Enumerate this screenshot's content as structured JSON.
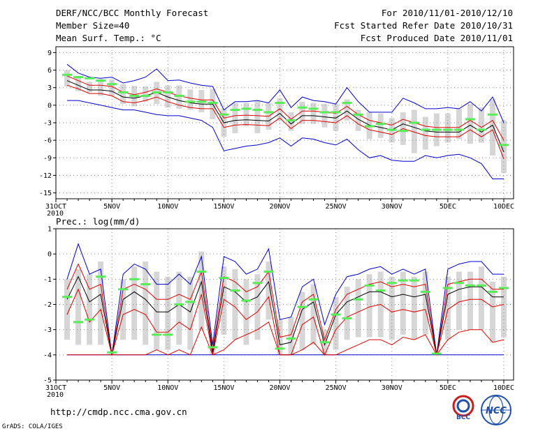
{
  "header": {
    "line1_left": "DERF/NCC/BCC Monthly Forecast",
    "line2_left": "Member Size=40",
    "line3_left": "Mean Surf. Temp.: °C",
    "line1_right": "For 2010/11/01-2010/12/10",
    "line2_right": "Fcst Started Refer Date 2010/10/31",
    "line3_right": "Fcst Produced Date 2010/11/01"
  },
  "footer": {
    "url": "http://cmdp.ncc.cma.gov.cn",
    "credit": "GrADS: COLA/IGES",
    "bcc_logo": "BCC",
    "ncc_logo": "NCC"
  },
  "colors": {
    "max_min": "#0000cc",
    "spread": "#dd0000",
    "mean": "#000000",
    "box": "#d6d6d6",
    "median": "#55ee55",
    "grid": "#888888"
  },
  "x_tick_labels": [
    "31OCT",
    "5NOV",
    "10NOV",
    "15NOV",
    "20NOV",
    "25NOV",
    "30NOV",
    "5DEC",
    "10DEC"
  ],
  "x_tick_days": [
    0,
    5,
    10,
    15,
    20,
    25,
    30,
    35,
    40
  ],
  "x_year_label": "2010",
  "chart_data": [
    {
      "type": "line",
      "title": "Mean Surf. Temp.: °C",
      "ylabel": "",
      "ylim": [
        -16,
        10
      ],
      "y_ticks": [
        -15,
        -12,
        -9,
        -6,
        -3,
        0,
        3,
        6,
        9
      ],
      "x": [
        1,
        2,
        3,
        4,
        5,
        6,
        7,
        8,
        9,
        10,
        11,
        12,
        13,
        14,
        15,
        16,
        17,
        18,
        19,
        20,
        21,
        22,
        23,
        24,
        25,
        26,
        27,
        28,
        29,
        30,
        31,
        32,
        33,
        34,
        35,
        36,
        37,
        38,
        39,
        40
      ],
      "series": [
        {
          "name": "max",
          "values": [
            7,
            5.5,
            4.8,
            4.6,
            4.8,
            3.8,
            4.2,
            4.8,
            6.2,
            4.2,
            4.3,
            3.8,
            3.4,
            3.2,
            -0.8,
            0.6,
            0.6,
            0.8,
            0.4,
            2.6,
            -0.4,
            1.4,
            0.8,
            0.6,
            0.2,
            3,
            0.6,
            -1.2,
            -1.2,
            -1.2,
            1.2,
            0.4,
            -0.6,
            -0.6,
            -0.4,
            -0.6,
            0.6,
            -1,
            1.4,
            -3
          ]
        },
        {
          "name": "upper",
          "values": [
            5,
            4.2,
            3.4,
            3.4,
            3.2,
            2.2,
            1.8,
            2.2,
            2.8,
            2.2,
            1.6,
            1.2,
            0.9,
            0.9,
            -2.2,
            -1.8,
            -1.7,
            -1.8,
            -1.9,
            -0.6,
            -2.4,
            -1,
            -1,
            -1.2,
            -1.4,
            -0.2,
            -1.6,
            -2.6,
            -3,
            -3.4,
            -2.4,
            -3,
            -3.6,
            -3.8,
            -3.8,
            -3.8,
            -2.6,
            -3.8,
            -2.6,
            -6
          ]
        },
        {
          "name": "mean",
          "values": [
            4.2,
            3.4,
            2.6,
            2.6,
            2.4,
            1.4,
            1.2,
            1.6,
            2.2,
            1.4,
            0.8,
            0.4,
            0.2,
            0.2,
            -3,
            -2.6,
            -2.5,
            -2.6,
            -2.7,
            -1.4,
            -3.2,
            -1.8,
            -1.8,
            -2,
            -2.2,
            -1,
            -2.4,
            -3.4,
            -3.8,
            -4.2,
            -3.2,
            -3.8,
            -4.4,
            -4.6,
            -4.6,
            -4.6,
            -3.4,
            -4.6,
            -3.4,
            -8
          ]
        },
        {
          "name": "lower",
          "values": [
            3.4,
            2.8,
            2,
            2,
            1.6,
            0.6,
            0.4,
            0.8,
            1.4,
            0.6,
            0,
            -0.4,
            -0.6,
            -0.6,
            -3.8,
            -3.4,
            -3.3,
            -3.4,
            -3.5,
            -2.2,
            -4,
            -2.6,
            -2.6,
            -2.8,
            -3,
            -1.8,
            -3.2,
            -4.2,
            -4.6,
            -5,
            -4,
            -4.6,
            -5.2,
            -5.4,
            -5.4,
            -5.4,
            -4.2,
            -5.4,
            -4.2,
            -9.2
          ]
        },
        {
          "name": "min",
          "values": [
            0.8,
            0.8,
            0.4,
            0,
            -0.4,
            -0.8,
            -0.8,
            -1.2,
            -1.6,
            -1.8,
            -1.8,
            -2.2,
            -2.6,
            -3.8,
            -7.8,
            -7.4,
            -7,
            -6.8,
            -6.4,
            -5.6,
            -7,
            -5.6,
            -5.8,
            -6.4,
            -6.8,
            -5.8,
            -7.6,
            -9,
            -8.6,
            -9.4,
            -9.6,
            -9.6,
            -8.6,
            -9,
            -8.6,
            -8.4,
            -9,
            -10,
            -12.6,
            -12.6
          ]
        }
      ],
      "boxes": {
        "high": [
          6,
          5,
          4,
          4.5,
          4.4,
          3.6,
          3.3,
          3.2,
          4,
          3.4,
          3.4,
          2.7,
          2.6,
          2.8,
          -0.6,
          0.4,
          0.4,
          0.8,
          0.4,
          1.2,
          -1.2,
          0.6,
          0.4,
          0.2,
          0.2,
          1,
          -0.8,
          -1.2,
          -1.4,
          -2.2,
          -1.2,
          -0.8,
          -2,
          -1.4,
          -1.4,
          -0.6,
          0.2,
          -0.4,
          1,
          -2.6
        ],
        "low": [
          3.2,
          2.4,
          2.2,
          1.6,
          1.6,
          0.2,
          -0.2,
          0.6,
          0.2,
          -0.4,
          -0.6,
          -0.8,
          -1.2,
          -2.4,
          -5.4,
          -4.8,
          -3.6,
          -4.8,
          -4.2,
          -2.6,
          -4.4,
          -3.2,
          -3.2,
          -3.8,
          -4.4,
          -2.6,
          -4.4,
          -5.8,
          -5.6,
          -6.4,
          -6.8,
          -8.2,
          -7.6,
          -7,
          -6.4,
          -5.8,
          -6.6,
          -6.4,
          -8.6,
          -11.6
        ],
        "median": [
          5.2,
          4.8,
          4.6,
          4.2,
          3.6,
          2.2,
          1.6,
          1.6,
          2.2,
          2.2,
          1.6,
          0.6,
          0.6,
          0.4,
          -1.6,
          -0.8,
          -0.6,
          -0.8,
          -1.2,
          0.4,
          -2.6,
          -0.4,
          -0.6,
          -1.2,
          -1.2,
          0.4,
          -1.6,
          -3.6,
          -3.2,
          -4.2,
          -4.4,
          -3,
          -4.2,
          -4.2,
          -4.2,
          -4.2,
          -2.4,
          -4.2,
          -1.6,
          -6.8
        ]
      }
    },
    {
      "type": "line",
      "title": "Prec.: log(mm/d)",
      "ylabel": "",
      "ylim": [
        -5,
        1
      ],
      "y_ticks": [
        -5,
        -4,
        -3,
        -2,
        -1,
        0,
        1
      ],
      "x": [
        1,
        2,
        3,
        4,
        5,
        6,
        7,
        8,
        9,
        10,
        11,
        12,
        13,
        14,
        15,
        16,
        17,
        18,
        19,
        20,
        21,
        22,
        23,
        24,
        25,
        26,
        27,
        28,
        29,
        30,
        31,
        32,
        33,
        34,
        35,
        36,
        37,
        38,
        39,
        40
      ],
      "series": [
        {
          "name": "max",
          "values": [
            -1,
            0.4,
            -0.8,
            -0.6,
            -4,
            -0.8,
            -0.4,
            -0.6,
            -1.2,
            -1.2,
            -0.8,
            -1.2,
            -0.1,
            -3.6,
            -0.1,
            -0.3,
            -0.8,
            -0.6,
            0.2,
            -2.6,
            -2.5,
            -1.3,
            -1,
            -2.8,
            -1.6,
            -0.9,
            -0.8,
            -0.6,
            -0.5,
            -0.8,
            -0.6,
            -0.8,
            -0.6,
            -4,
            -0.6,
            -0.4,
            -0.3,
            -0.3,
            -0.8,
            -0.8
          ]
        },
        {
          "name": "upper",
          "values": [
            -1.4,
            -0.4,
            -1.4,
            -1.2,
            -4,
            -1.4,
            -1.2,
            -1.4,
            -1.8,
            -1.8,
            -1.6,
            -1.8,
            -0.7,
            -3.8,
            -0.9,
            -1.1,
            -1.5,
            -1.3,
            -0.7,
            -3.3,
            -3.2,
            -1.9,
            -1.6,
            -3.4,
            -2.2,
            -1.6,
            -1.4,
            -1.2,
            -1.1,
            -1.3,
            -1.2,
            -1.3,
            -1.2,
            -4,
            -1.2,
            -1.1,
            -1,
            -1,
            -1.4,
            -1.4
          ]
        },
        {
          "name": "mean",
          "values": [
            -1.8,
            -0.9,
            -1.9,
            -1.6,
            -4,
            -1.8,
            -1.5,
            -1.8,
            -2.3,
            -2.3,
            -2,
            -2.3,
            -1.1,
            -3.9,
            -1.3,
            -1.5,
            -1.9,
            -1.7,
            -1.1,
            -3.6,
            -3.5,
            -2.2,
            -1.9,
            -3.6,
            -2.4,
            -1.9,
            -1.7,
            -1.5,
            -1.5,
            -1.7,
            -1.6,
            -1.7,
            -1.6,
            -4,
            -1.6,
            -1.4,
            -1.3,
            -1.3,
            -1.7,
            -1.7
          ]
        },
        {
          "name": "lower",
          "values": [
            -2.4,
            -1.4,
            -2.7,
            -2.2,
            -4,
            -2.4,
            -2.2,
            -2.4,
            -3.1,
            -3.1,
            -2.7,
            -3,
            -1.6,
            -4,
            -1.8,
            -2.1,
            -2.6,
            -2.3,
            -1.7,
            -4,
            -4,
            -2.8,
            -2.5,
            -4,
            -3,
            -2.5,
            -2.3,
            -2.1,
            -2,
            -2.3,
            -2.2,
            -2.3,
            -2.2,
            -4,
            -2.2,
            -1.9,
            -1.8,
            -1.8,
            -2.1,
            -2
          ]
        },
        {
          "name": "min",
          "values": [
            -4,
            -4,
            -4,
            -4,
            -4,
            -4,
            -4,
            -4,
            -4,
            -4,
            -4,
            -4,
            -4,
            -4,
            -4,
            -4,
            -4,
            -4,
            -4,
            -4,
            -4,
            -4,
            -4,
            -4,
            -4,
            -4,
            -4,
            -4,
            -4,
            -4,
            -4,
            -4,
            -4,
            -4,
            -4,
            -4,
            -4,
            -4,
            -4,
            -4
          ]
        },
        {
          "name": "lowest",
          "values": [
            -4,
            -4,
            -4,
            -4,
            -4,
            -4,
            -4,
            -4,
            -3.8,
            -4,
            -3.8,
            -4,
            -2.9,
            -4,
            -3.8,
            -3.4,
            -3.2,
            -3,
            -2.7,
            -4,
            -4,
            -3.8,
            -3.5,
            -4,
            -4,
            -3.8,
            -3.6,
            -3.4,
            -3.4,
            -3.6,
            -3.3,
            -3.4,
            -3.2,
            -4,
            -3.4,
            -3.1,
            -3,
            -3,
            -3.5,
            -3.4
          ]
        }
      ],
      "boxes": {
        "high": [
          -1,
          -0.6,
          -0.8,
          -0.3,
          -3.9,
          -1,
          -0.5,
          -0.3,
          -0.7,
          -0.9,
          -0.7,
          -0.9,
          0.1,
          -3.4,
          -0.5,
          -0.6,
          -1,
          -0.8,
          -0.3,
          -2.6,
          -2.5,
          -1.5,
          -1.2,
          -3,
          -1.7,
          -1.3,
          -1,
          -0.8,
          -0.7,
          -0.9,
          -0.7,
          -0.9,
          -0.7,
          -3.9,
          -0.9,
          -0.7,
          -0.7,
          -0.5,
          -1.1,
          -0.9
        ],
        "low": [
          -3.4,
          -3.6,
          -3.6,
          -3.6,
          -4,
          -3.4,
          -3.4,
          -3.6,
          -3.8,
          -3.8,
          -3.6,
          -3.8,
          -3,
          -4,
          -3.2,
          -3.4,
          -3.6,
          -3.4,
          -2.6,
          -4,
          -4,
          -3.8,
          -3.6,
          -4,
          -3.8,
          -3.4,
          -3.3,
          -3.3,
          -3.3,
          -3.4,
          -3.2,
          -3.4,
          -3.2,
          -4,
          -3.4,
          -3,
          -3,
          -3,
          -3.5,
          -3.3
        ],
        "median": [
          -1.7,
          -2.7,
          -2.6,
          -0.9,
          -3.9,
          -1.4,
          -1,
          -1.2,
          -3.2,
          -3.2,
          -2,
          -1.9,
          -0.7,
          -3.7,
          -0.95,
          -1.45,
          -1.85,
          -1.15,
          -0.7,
          -3.75,
          -3.35,
          -2.1,
          -1.8,
          -3.5,
          -2.4,
          -2.55,
          -1.8,
          -1.25,
          -1.45,
          -1.15,
          -1.05,
          -1.05,
          -1.5,
          -3.95,
          -1.35,
          -1.15,
          -1.25,
          -1.25,
          -1.5,
          -1.35
        ]
      }
    }
  ]
}
